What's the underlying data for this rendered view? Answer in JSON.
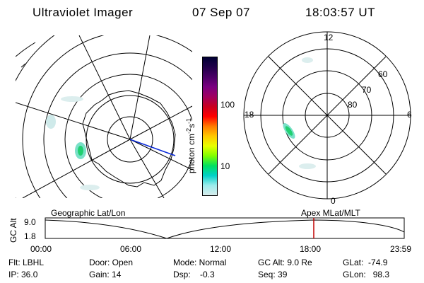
{
  "header": {
    "instrument": "Ultraviolet Imager",
    "date": "07 Sep 07",
    "time": "18:03:57 UT"
  },
  "left_map": {
    "caption": "Geographic Lat/Lon"
  },
  "right_dial": {
    "caption": "Apex MLat/MLT",
    "mlt_labels": {
      "top": "12",
      "bottom": "0",
      "left": "18",
      "right": "6"
    },
    "lat_labels": [
      "60",
      "70",
      "80"
    ]
  },
  "colorbar": {
    "unit_label": "photon cm",
    "unit_exp1": "-2",
    "unit_mid": "s",
    "unit_exp2": "-1",
    "tick_labels": [
      "100",
      "10"
    ],
    "colors": [
      "#000033",
      "#20004a",
      "#4a0066",
      "#7a0080",
      "#a00060",
      "#c80020",
      "#ff0000",
      "#ff7a00",
      "#ffc800",
      "#e8ff00",
      "#80ff00",
      "#00e060",
      "#00d0c8",
      "#9cecec",
      "#d8ecec"
    ]
  },
  "altitude_plot": {
    "ylabel": "GC Alt",
    "y_ticks": [
      "9.0",
      "1.8"
    ],
    "x_ticks": [
      "00:00",
      "06:00",
      "12:00",
      "18:00",
      "23:59"
    ],
    "marker_color": "#c00000"
  },
  "info": {
    "filter": "Flt: LBHL",
    "ip": "IP: 36.0",
    "door": "Door: Open",
    "gain": "Gain: 14",
    "mode": "Mode: Normal",
    "dsp": "Dsp:    -0.3",
    "gc_alt": "GC Alt: 9.0 Re",
    "seq": "Seq: 39",
    "glat": "GLat:  -74.9",
    "glon": "GLon:   98.3"
  }
}
